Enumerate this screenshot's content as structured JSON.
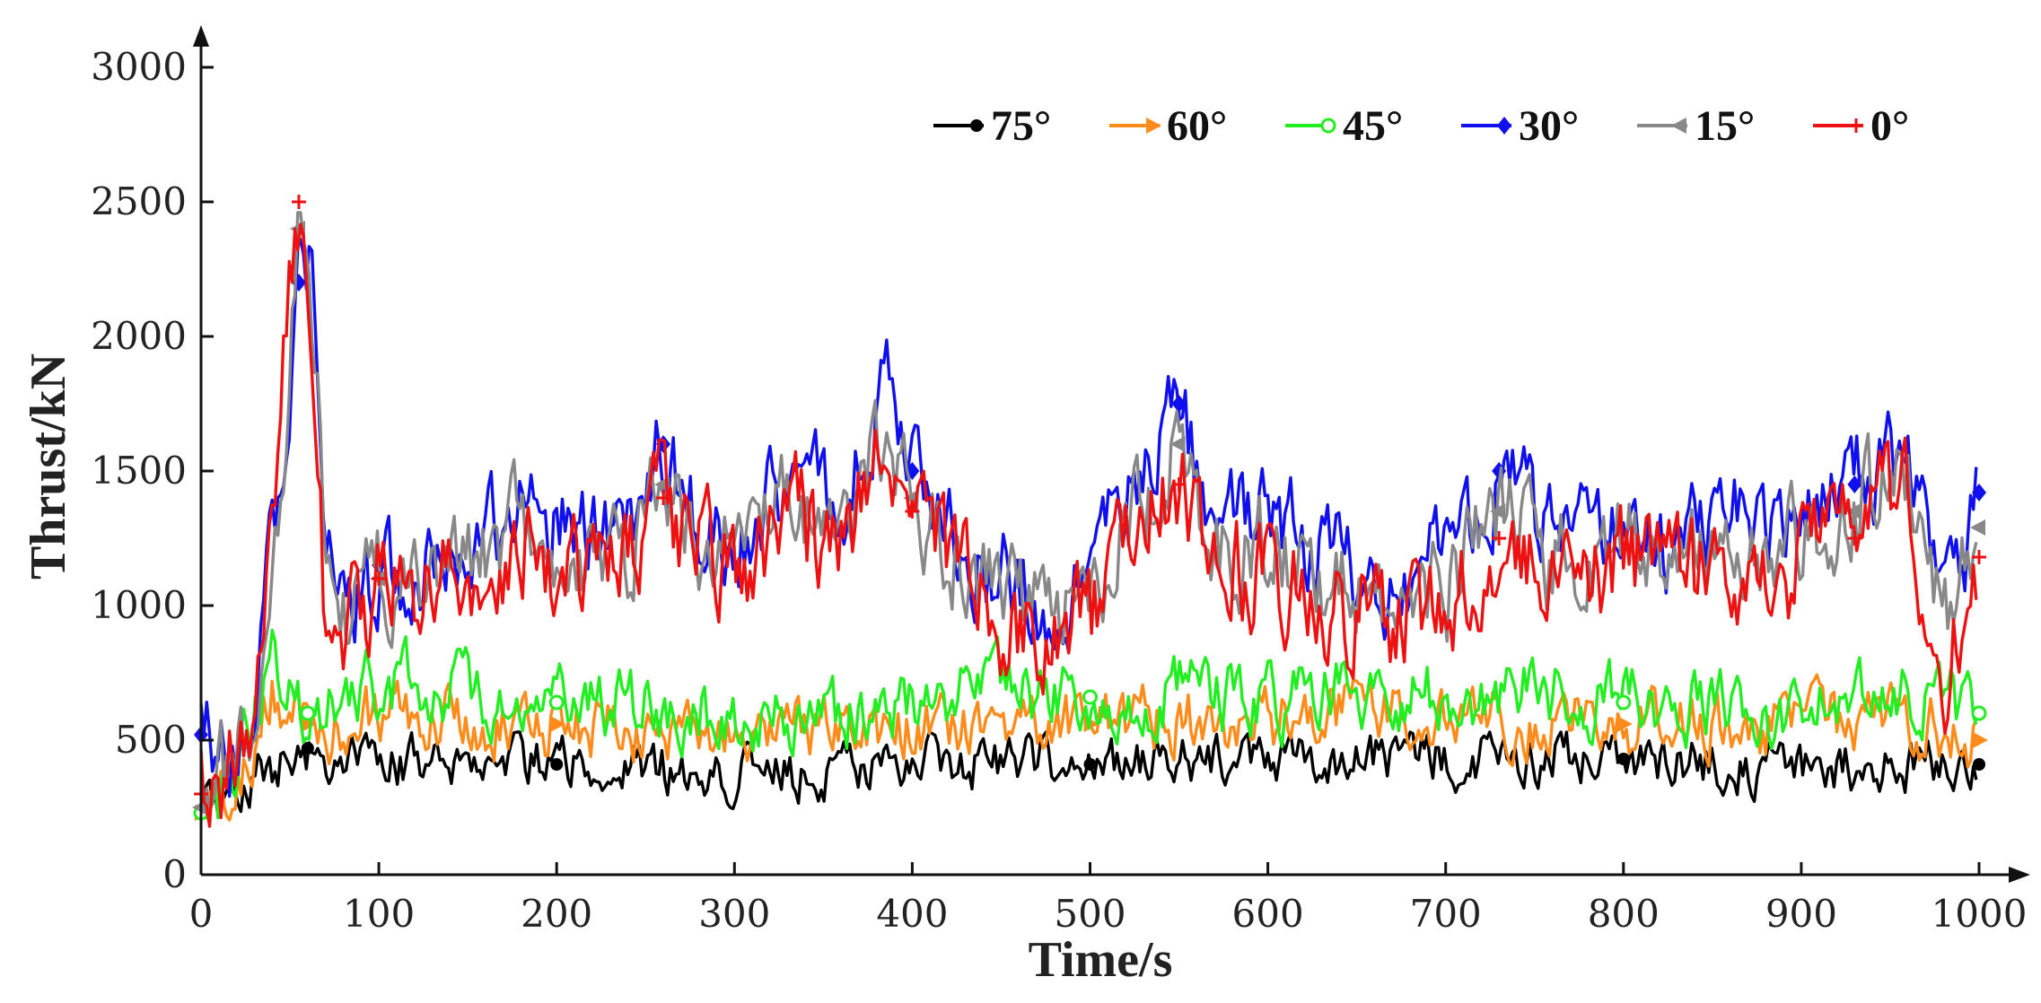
{
  "chart_data": {
    "type": "line",
    "title": "",
    "xlabel": "Time/s",
    "ylabel": "Thrust/kN",
    "xlim": [
      0,
      1000
    ],
    "ylim": [
      0,
      3000
    ],
    "xticks": [
      0,
      100,
      200,
      300,
      400,
      500,
      600,
      700,
      800,
      900,
      1000
    ],
    "yticks": [
      0,
      500,
      1000,
      1500,
      2000,
      2500,
      3000
    ],
    "xtick_labels": [
      "0",
      "100",
      "200",
      "300",
      "400",
      "500",
      "600",
      "700",
      "800",
      "900",
      "1000"
    ],
    "ytick_labels": [
      "0",
      "500",
      "1000",
      "1500",
      "2000",
      "2500",
      "3000"
    ],
    "legend_position": "top-right",
    "grid": false,
    "series": [
      {
        "name": "75°",
        "color": "#000000",
        "marker": "dot",
        "x": [
          0,
          10,
          20,
          30,
          40,
          50,
          60,
          70,
          80,
          90,
          100,
          150,
          200,
          250,
          300,
          350,
          400,
          450,
          500,
          550,
          600,
          650,
          700,
          750,
          800,
          850,
          900,
          950,
          1000
        ],
        "y": [
          240,
          250,
          300,
          340,
          400,
          450,
          470,
          440,
          420,
          400,
          420,
          440,
          410,
          400,
          380,
          370,
          400,
          420,
          410,
          420,
          410,
          430,
          440,
          450,
          430,
          410,
          400,
          410,
          410
        ]
      },
      {
        "name": "60°",
        "color": "#ff8c1a",
        "marker": "triangle-right",
        "x": [
          0,
          10,
          20,
          30,
          40,
          50,
          60,
          70,
          80,
          90,
          100,
          150,
          200,
          250,
          300,
          350,
          400,
          450,
          500,
          550,
          600,
          650,
          700,
          750,
          800,
          850,
          900,
          950,
          1000
        ],
        "y": [
          230,
          260,
          320,
          480,
          700,
          620,
          560,
          540,
          560,
          600,
          610,
          580,
          560,
          540,
          520,
          510,
          560,
          600,
          560,
          580,
          560,
          620,
          580,
          580,
          560,
          560,
          540,
          600,
          500
        ]
      },
      {
        "name": "45°",
        "color": "#22ee22",
        "marker": "circle",
        "x": [
          0,
          10,
          20,
          30,
          40,
          50,
          60,
          70,
          80,
          90,
          100,
          150,
          200,
          250,
          300,
          350,
          400,
          450,
          500,
          550,
          600,
          650,
          700,
          750,
          800,
          850,
          900,
          950,
          1000
        ],
        "y": [
          230,
          270,
          360,
          620,
          860,
          680,
          600,
          640,
          680,
          700,
          720,
          660,
          640,
          620,
          600,
          580,
          640,
          700,
          660,
          680,
          640,
          700,
          660,
          680,
          640,
          620,
          620,
          700,
          600
        ]
      },
      {
        "name": "30°",
        "color": "#1010ee",
        "marker": "diamond",
        "x": [
          0,
          10,
          20,
          30,
          40,
          50,
          55,
          60,
          65,
          70,
          80,
          90,
          100,
          130,
          150,
          180,
          210,
          240,
          260,
          280,
          300,
          330,
          360,
          385,
          400,
          420,
          450,
          480,
          500,
          520,
          550,
          570,
          600,
          630,
          660,
          700,
          730,
          760,
          800,
          830,
          860,
          900,
          930,
          960,
          980,
          1000
        ],
        "y": [
          520,
          420,
          460,
          700,
          1250,
          1800,
          2200,
          2300,
          1950,
          1300,
          1000,
          1050,
          1150,
          1100,
          1250,
          1400,
          1300,
          1250,
          1600,
          1350,
          1250,
          1500,
          1400,
          1800,
          1500,
          1300,
          1100,
          1000,
          1100,
          1400,
          1750,
          1300,
          1350,
          1200,
          1100,
          1150,
          1500,
          1250,
          1350,
          1200,
          1300,
          1350,
          1450,
          1650,
          950,
          1420
        ]
      },
      {
        "name": "15°",
        "color": "#888888",
        "marker": "triangle-left",
        "x": [
          0,
          10,
          20,
          30,
          40,
          50,
          55,
          60,
          65,
          70,
          80,
          90,
          100,
          130,
          150,
          180,
          210,
          240,
          260,
          280,
          300,
          330,
          360,
          385,
          400,
          420,
          450,
          480,
          500,
          520,
          550,
          570,
          600,
          630,
          660,
          700,
          730,
          760,
          800,
          830,
          860,
          900,
          930,
          960,
          980,
          1000
        ],
        "y": [
          250,
          330,
          420,
          620,
          1200,
          1900,
          2400,
          2150,
          1900,
          1200,
          950,
          1000,
          1100,
          1050,
          1150,
          1300,
          1200,
          1150,
          1450,
          1250,
          1150,
          1400,
          1300,
          1650,
          1400,
          1200,
          1000,
          950,
          1000,
          1300,
          1600,
          1200,
          1250,
          1100,
          1000,
          1050,
          1350,
          1150,
          1250,
          1100,
          1200,
          1250,
          1350,
          1500,
          900,
          1290
        ]
      },
      {
        "name": "0°",
        "color": "#ee1111",
        "marker": "plus",
        "x": [
          0,
          10,
          20,
          30,
          40,
          50,
          55,
          60,
          65,
          70,
          80,
          90,
          100,
          130,
          150,
          180,
          210,
          240,
          260,
          280,
          300,
          330,
          360,
          385,
          400,
          420,
          450,
          480,
          500,
          520,
          550,
          570,
          600,
          630,
          660,
          700,
          730,
          760,
          800,
          830,
          860,
          900,
          930,
          960,
          980,
          1000
        ],
        "y": [
          300,
          380,
          450,
          650,
          1400,
          2200,
          2500,
          2150,
          1700,
          900,
          850,
          1000,
          1100,
          1050,
          1100,
          1250,
          1150,
          1100,
          1400,
          1200,
          1100,
          1350,
          1200,
          1600,
          1350,
          1150,
          950,
          900,
          950,
          1250,
          1450,
          1100,
          1150,
          1050,
          950,
          1000,
          1250,
          1050,
          1150,
          1050,
          1150,
          1150,
          1250,
          1450,
          700,
          1180
        ]
      }
    ]
  }
}
